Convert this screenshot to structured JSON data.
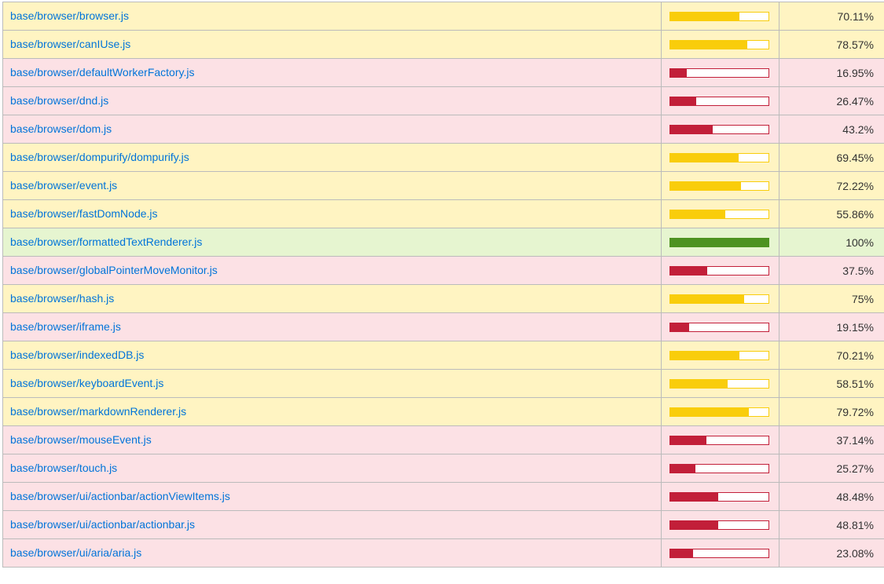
{
  "colors": {
    "low_bg": "#fce1e5",
    "low_bar": "#c21f39",
    "medium_bg": "#fff4c2",
    "medium_bar": "#f9cd0b",
    "high_bg": "#e6f5d0",
    "high_bar": "#4d9221",
    "link": "#0074d9"
  },
  "rows": [
    {
      "file": "base/browser/browser.js",
      "pct": 70.11,
      "pct_label": "70.11%",
      "level": "medium"
    },
    {
      "file": "base/browser/canIUse.js",
      "pct": 78.57,
      "pct_label": "78.57%",
      "level": "medium"
    },
    {
      "file": "base/browser/defaultWorkerFactory.js",
      "pct": 16.95,
      "pct_label": "16.95%",
      "level": "low"
    },
    {
      "file": "base/browser/dnd.js",
      "pct": 26.47,
      "pct_label": "26.47%",
      "level": "low"
    },
    {
      "file": "base/browser/dom.js",
      "pct": 43.2,
      "pct_label": "43.2%",
      "level": "low"
    },
    {
      "file": "base/browser/dompurify/dompurify.js",
      "pct": 69.45,
      "pct_label": "69.45%",
      "level": "medium"
    },
    {
      "file": "base/browser/event.js",
      "pct": 72.22,
      "pct_label": "72.22%",
      "level": "medium"
    },
    {
      "file": "base/browser/fastDomNode.js",
      "pct": 55.86,
      "pct_label": "55.86%",
      "level": "medium"
    },
    {
      "file": "base/browser/formattedTextRenderer.js",
      "pct": 100,
      "pct_label": "100%",
      "level": "high"
    },
    {
      "file": "base/browser/globalPointerMoveMonitor.js",
      "pct": 37.5,
      "pct_label": "37.5%",
      "level": "low"
    },
    {
      "file": "base/browser/hash.js",
      "pct": 75,
      "pct_label": "75%",
      "level": "medium"
    },
    {
      "file": "base/browser/iframe.js",
      "pct": 19.15,
      "pct_label": "19.15%",
      "level": "low"
    },
    {
      "file": "base/browser/indexedDB.js",
      "pct": 70.21,
      "pct_label": "70.21%",
      "level": "medium"
    },
    {
      "file": "base/browser/keyboardEvent.js",
      "pct": 58.51,
      "pct_label": "58.51%",
      "level": "medium"
    },
    {
      "file": "base/browser/markdownRenderer.js",
      "pct": 79.72,
      "pct_label": "79.72%",
      "level": "medium"
    },
    {
      "file": "base/browser/mouseEvent.js",
      "pct": 37.14,
      "pct_label": "37.14%",
      "level": "low"
    },
    {
      "file": "base/browser/touch.js",
      "pct": 25.27,
      "pct_label": "25.27%",
      "level": "low"
    },
    {
      "file": "base/browser/ui/actionbar/actionViewItems.js",
      "pct": 48.48,
      "pct_label": "48.48%",
      "level": "low"
    },
    {
      "file": "base/browser/ui/actionbar/actionbar.js",
      "pct": 48.81,
      "pct_label": "48.81%",
      "level": "low"
    },
    {
      "file": "base/browser/ui/aria/aria.js",
      "pct": 23.08,
      "pct_label": "23.08%",
      "level": "low"
    }
  ]
}
